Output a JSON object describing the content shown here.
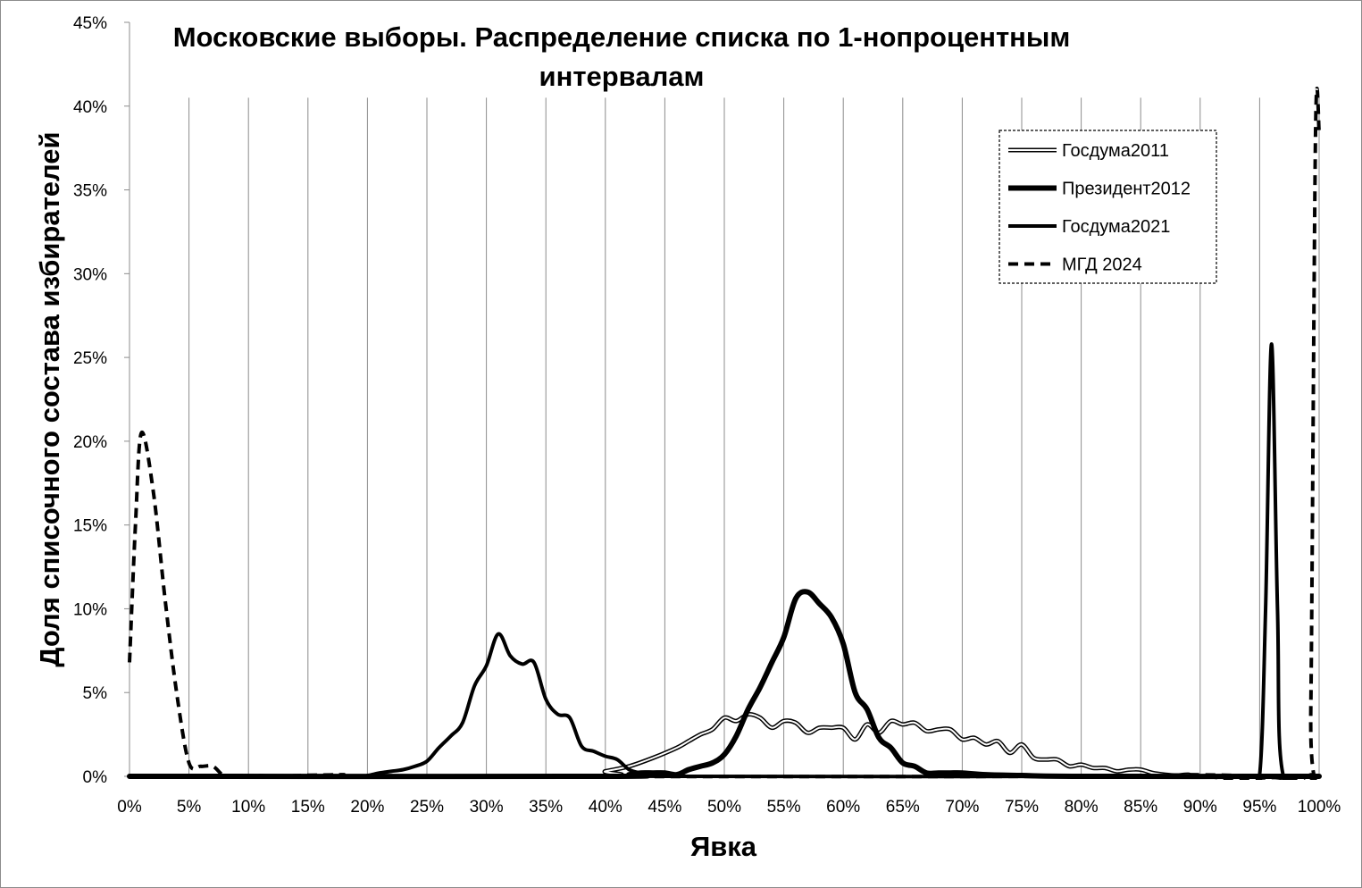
{
  "chart_data": {
    "type": "line",
    "title_line1": "Московские выборы. Распределение списка по 1-нопроцентным",
    "title_line2": "интервалам",
    "xlabel": "Явка",
    "ylabel": "Доля списочного состава избирателей",
    "xlim": [
      0,
      100
    ],
    "ylim": [
      0,
      45
    ],
    "x_unit": "%",
    "y_unit": "%",
    "x_ticks": [
      "0%",
      "5%",
      "10%",
      "15%",
      "20%",
      "25%",
      "30%",
      "35%",
      "40%",
      "45%",
      "50%",
      "55%",
      "60%",
      "65%",
      "70%",
      "75%",
      "80%",
      "85%",
      "90%",
      "95%",
      "100%"
    ],
    "y_ticks": [
      "0%",
      "5%",
      "10%",
      "15%",
      "20%",
      "25%",
      "30%",
      "35%",
      "40%",
      "45%"
    ],
    "grid": "vertical",
    "legend_position": "top-right",
    "series": [
      {
        "name": "Госдума2011",
        "style": "double",
        "points": [
          [
            0,
            0
          ],
          [
            38,
            0
          ],
          [
            40,
            0.3
          ],
          [
            42,
            0.6
          ],
          [
            44,
            1.1
          ],
          [
            46,
            1.7
          ],
          [
            47,
            2.1
          ],
          [
            48,
            2.5
          ],
          [
            49,
            2.8
          ],
          [
            50,
            3.5
          ],
          [
            51,
            3.3
          ],
          [
            52,
            3.7
          ],
          [
            53,
            3.5
          ],
          [
            54,
            2.9
          ],
          [
            55,
            3.3
          ],
          [
            56,
            3.2
          ],
          [
            57,
            2.6
          ],
          [
            58,
            2.9
          ],
          [
            59,
            2.9
          ],
          [
            60,
            2.9
          ],
          [
            61,
            2.2
          ],
          [
            62,
            3.1
          ],
          [
            63,
            2.6
          ],
          [
            64,
            3.3
          ],
          [
            65,
            3.1
          ],
          [
            66,
            3.2
          ],
          [
            67,
            2.7
          ],
          [
            68,
            2.8
          ],
          [
            69,
            2.8
          ],
          [
            70,
            2.2
          ],
          [
            71,
            2.3
          ],
          [
            72,
            1.9
          ],
          [
            73,
            2.1
          ],
          [
            74,
            1.4
          ],
          [
            75,
            1.9
          ],
          [
            76,
            1.1
          ],
          [
            77,
            1.0
          ],
          [
            78,
            1.0
          ],
          [
            79,
            0.6
          ],
          [
            80,
            0.7
          ],
          [
            81,
            0.5
          ],
          [
            82,
            0.5
          ],
          [
            83,
            0.3
          ],
          [
            84,
            0.4
          ],
          [
            85,
            0.4
          ],
          [
            86,
            0.2
          ],
          [
            87,
            0.1
          ],
          [
            88,
            0.05
          ],
          [
            89,
            0.1
          ],
          [
            90,
            0
          ],
          [
            100,
            0
          ]
        ]
      },
      {
        "name": "Президент2012",
        "style": "thick",
        "points": [
          [
            0,
            0
          ],
          [
            40,
            0
          ],
          [
            42,
            0.1
          ],
          [
            43,
            0.2
          ],
          [
            44,
            0.2
          ],
          [
            45,
            0.2
          ],
          [
            46,
            0.1
          ],
          [
            47,
            0.4
          ],
          [
            48,
            0.6
          ],
          [
            49,
            0.8
          ],
          [
            50,
            1.3
          ],
          [
            51,
            2.4
          ],
          [
            52,
            4.0
          ],
          [
            53,
            5.3
          ],
          [
            54,
            6.8
          ],
          [
            55,
            8.3
          ],
          [
            56,
            10.6
          ],
          [
            57,
            11.0
          ],
          [
            58,
            10.3
          ],
          [
            59,
            9.5
          ],
          [
            60,
            7.9
          ],
          [
            61,
            5.0
          ],
          [
            62,
            4.0
          ],
          [
            63,
            2.3
          ],
          [
            64,
            1.7
          ],
          [
            65,
            0.8
          ],
          [
            66,
            0.6
          ],
          [
            67,
            0.2
          ],
          [
            68,
            0.2
          ],
          [
            69,
            0.2
          ],
          [
            70,
            0.2
          ],
          [
            72,
            0.1
          ],
          [
            75,
            0.05
          ],
          [
            80,
            0
          ],
          [
            100,
            0
          ]
        ]
      },
      {
        "name": "Госдума2021",
        "style": "medium",
        "points": [
          [
            0,
            0
          ],
          [
            19,
            0
          ],
          [
            20,
            0.05
          ],
          [
            21,
            0.2
          ],
          [
            22,
            0.3
          ],
          [
            23,
            0.4
          ],
          [
            24,
            0.6
          ],
          [
            25,
            0.9
          ],
          [
            26,
            1.7
          ],
          [
            27,
            2.4
          ],
          [
            28,
            3.2
          ],
          [
            29,
            5.4
          ],
          [
            30,
            6.6
          ],
          [
            31,
            8.5
          ],
          [
            32,
            7.2
          ],
          [
            33,
            6.7
          ],
          [
            34,
            6.8
          ],
          [
            35,
            4.6
          ],
          [
            36,
            3.7
          ],
          [
            37,
            3.5
          ],
          [
            38,
            1.8
          ],
          [
            39,
            1.5
          ],
          [
            40,
            1.2
          ],
          [
            41,
            1.0
          ],
          [
            42,
            0.4
          ],
          [
            43,
            0.2
          ],
          [
            44,
            0.1
          ],
          [
            46,
            0
          ],
          [
            94,
            0
          ],
          [
            95,
            0.1
          ],
          [
            95.5,
            10
          ],
          [
            96,
            25.8
          ],
          [
            96.5,
            10
          ],
          [
            97,
            0
          ],
          [
            100,
            0
          ]
        ]
      },
      {
        "name": "МГД 2024",
        "style": "dashed",
        "points": [
          [
            0,
            6.8
          ],
          [
            0.5,
            15
          ],
          [
            1,
            20.5
          ],
          [
            2,
            17
          ],
          [
            3,
            10.5
          ],
          [
            4,
            4.8
          ],
          [
            5,
            0.8
          ],
          [
            6,
            0.6
          ],
          [
            7,
            0.6
          ],
          [
            8,
            0
          ],
          [
            9,
            0.05
          ],
          [
            10,
            0
          ],
          [
            11,
            0.05
          ],
          [
            12,
            0
          ],
          [
            14,
            0
          ],
          [
            18,
            0.1
          ],
          [
            19,
            0
          ],
          [
            88,
            0
          ],
          [
            89,
            0.1
          ],
          [
            90,
            0
          ],
          [
            99,
            0
          ],
          [
            99.3,
            4
          ],
          [
            99.7,
            38.5
          ],
          [
            100,
            38.5
          ]
        ]
      }
    ]
  }
}
